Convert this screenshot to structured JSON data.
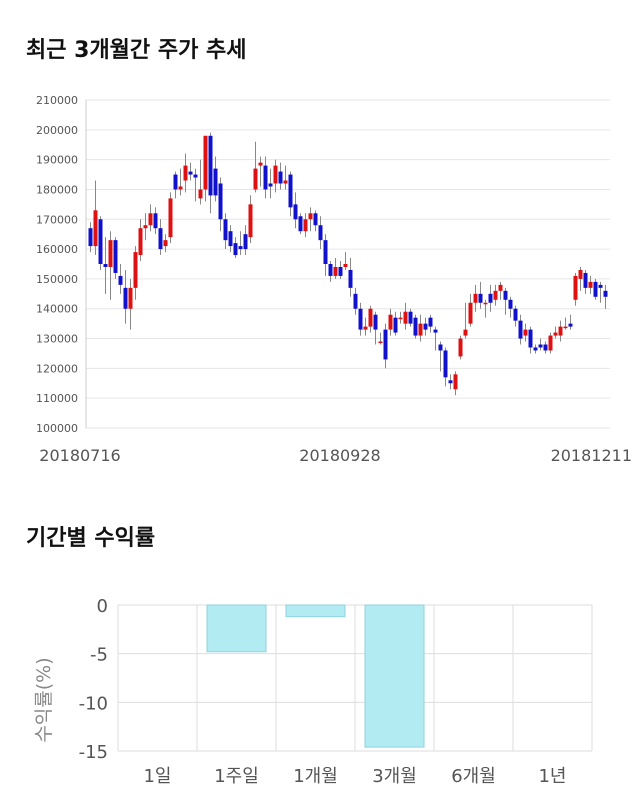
{
  "section1": {
    "title": "최근 3개월간 주가 추세"
  },
  "section2": {
    "title": "기간별 수익률"
  },
  "chart_data": [
    {
      "type": "candlestick",
      "title": "최근 3개월간 주가 추세",
      "ylim": [
        100000,
        210000
      ],
      "y_ticks": [
        100000,
        110000,
        120000,
        130000,
        140000,
        150000,
        160000,
        170000,
        180000,
        190000,
        200000,
        210000
      ],
      "x_tick_labels": [
        "20180716",
        "20180928",
        "20181211"
      ],
      "grid": true,
      "colors": {
        "up": "#dd1111",
        "down": "#1111cc",
        "wick": "#888888",
        "grid": "#e6e6e6"
      },
      "candles": [
        [
          167000,
          161000,
          169000,
          159000
        ],
        [
          161000,
          173000,
          183000,
          158000
        ],
        [
          170000,
          155000,
          171000,
          153000
        ],
        [
          155000,
          154000,
          164000,
          145000
        ],
        [
          154000,
          163000,
          166000,
          143000
        ],
        [
          163000,
          152000,
          164000,
          150000
        ],
        [
          151000,
          148000,
          155000,
          145000
        ],
        [
          147000,
          140000,
          153000,
          135000
        ],
        [
          140000,
          147000,
          150000,
          133000
        ],
        [
          147000,
          159000,
          161000,
          143000
        ],
        [
          158000,
          167000,
          170000,
          156000
        ],
        [
          167000,
          168000,
          172000,
          163000
        ],
        [
          168000,
          172000,
          175000,
          166000
        ],
        [
          172000,
          167000,
          174000,
          165000
        ],
        [
          167000,
          160000,
          170000,
          158000
        ],
        [
          161000,
          163000,
          165000,
          159000
        ],
        [
          164000,
          177000,
          179000,
          162000
        ],
        [
          185000,
          180000,
          186000,
          177000
        ],
        [
          180000,
          181000,
          187000,
          178000
        ],
        [
          183000,
          188000,
          192000,
          179000
        ],
        [
          186000,
          185000,
          189000,
          183000
        ],
        [
          185000,
          184000,
          187000,
          176000
        ],
        [
          177000,
          180000,
          190000,
          175000
        ],
        [
          180000,
          198000,
          198000,
          176000
        ],
        [
          198000,
          178000,
          199000,
          172000
        ],
        [
          187000,
          178000,
          191000,
          176000
        ],
        [
          182000,
          170000,
          184000,
          166000
        ],
        [
          170000,
          163000,
          172000,
          160000
        ],
        [
          166000,
          161000,
          168000,
          159000
        ],
        [
          162000,
          158000,
          164000,
          157000
        ],
        [
          161000,
          160000,
          166000,
          158000
        ],
        [
          165000,
          160000,
          168000,
          158000
        ],
        [
          164000,
          175000,
          178000,
          162000
        ],
        [
          180000,
          187000,
          196000,
          179000
        ],
        [
          188000,
          189000,
          191000,
          181000
        ],
        [
          188000,
          180000,
          191000,
          177000
        ],
        [
          182000,
          181000,
          187000,
          177000
        ],
        [
          182000,
          188000,
          190000,
          179000
        ],
        [
          186000,
          182000,
          189000,
          180000
        ],
        [
          182000,
          183000,
          188000,
          180000
        ],
        [
          185000,
          174000,
          186000,
          171000
        ],
        [
          175000,
          170000,
          179000,
          167000
        ],
        [
          171000,
          166000,
          172000,
          165000
        ],
        [
          166000,
          170000,
          172000,
          164000
        ],
        [
          170000,
          172000,
          174000,
          166000
        ],
        [
          172000,
          168000,
          173000,
          166000
        ],
        [
          168000,
          163000,
          171000,
          160000
        ],
        [
          163000,
          155000,
          165000,
          151000
        ],
        [
          155000,
          151000,
          156000,
          149000
        ],
        [
          151000,
          154000,
          157000,
          150000
        ],
        [
          154000,
          151000,
          156000,
          150000
        ],
        [
          154000,
          155000,
          159000,
          153000
        ],
        [
          153000,
          147000,
          157000,
          144000
        ],
        [
          145000,
          140000,
          147000,
          138000
        ],
        [
          140000,
          133000,
          142000,
          131000
        ],
        [
          133000,
          134000,
          137000,
          131000
        ],
        [
          134000,
          140000,
          141000,
          132000
        ],
        [
          138000,
          133000,
          139000,
          128000
        ],
        [
          129000,
          129000,
          132000,
          128000
        ],
        [
          133000,
          123000,
          135000,
          120000
        ],
        [
          133000,
          138000,
          140000,
          131000
        ],
        [
          137000,
          132000,
          139000,
          131000
        ],
        [
          137000,
          137000,
          139000,
          135000
        ],
        [
          135000,
          139000,
          142000,
          133000
        ],
        [
          139000,
          135000,
          140000,
          134000
        ],
        [
          137000,
          131000,
          138000,
          130000
        ],
        [
          131000,
          135000,
          138000,
          129000
        ],
        [
          135000,
          133000,
          137000,
          131000
        ],
        [
          137000,
          134000,
          138000,
          132000
        ],
        [
          133000,
          132000,
          134000,
          126000
        ],
        [
          128000,
          126000,
          129000,
          119000
        ],
        [
          126000,
          117000,
          127000,
          114000
        ],
        [
          116000,
          115000,
          118000,
          113000
        ],
        [
          113000,
          118000,
          119000,
          111000
        ],
        [
          124000,
          130000,
          131000,
          123000
        ],
        [
          131000,
          133000,
          142000,
          130000
        ],
        [
          135000,
          142000,
          145000,
          134000
        ],
        [
          142000,
          145000,
          148000,
          139000
        ],
        [
          145000,
          142000,
          149000,
          140000
        ],
        [
          142000,
          142000,
          143000,
          137000
        ],
        [
          145000,
          142000,
          148000,
          139000
        ],
        [
          143000,
          146000,
          148000,
          141000
        ],
        [
          146000,
          148000,
          149000,
          143000
        ],
        [
          146000,
          143000,
          147000,
          138000
        ],
        [
          143000,
          140000,
          144000,
          137000
        ],
        [
          140000,
          136000,
          141000,
          134000
        ],
        [
          136000,
          130000,
          138000,
          128000
        ],
        [
          131000,
          133000,
          135000,
          129000
        ],
        [
          133000,
          127000,
          134000,
          125000
        ],
        [
          127000,
          126000,
          128000,
          125000
        ],
        [
          128000,
          127000,
          130000,
          126000
        ],
        [
          128000,
          126000,
          129000,
          125000
        ],
        [
          126000,
          131000,
          132000,
          125000
        ],
        [
          131000,
          132000,
          134000,
          130000
        ],
        [
          131000,
          134000,
          136000,
          129000
        ],
        [
          134000,
          134000,
          137000,
          133000
        ],
        [
          135000,
          134000,
          138000,
          133000
        ],
        [
          143000,
          151000,
          152000,
          141000
        ],
        [
          150000,
          153000,
          154000,
          146000
        ],
        [
          152000,
          147000,
          153000,
          145000
        ],
        [
          147000,
          149000,
          151000,
          145000
        ],
        [
          149000,
          144000,
          150000,
          143000
        ],
        [
          148000,
          147000,
          149000,
          142000
        ],
        [
          146000,
          144000,
          148000,
          140000
        ]
      ]
    },
    {
      "type": "bar",
      "title": "기간별 수익률",
      "ylabel": "수익률(%)",
      "xlabel": "",
      "ylim": [
        -15,
        0
      ],
      "y_ticks": [
        0,
        -5,
        -10,
        -15
      ],
      "grid": true,
      "categories": [
        "1일",
        "1주일",
        "1개월",
        "3개월",
        "6개월",
        "1년"
      ],
      "values": [
        0,
        -4.8,
        -1.2,
        -14.6,
        null,
        null
      ],
      "colors": {
        "bar": "#b3ebf2",
        "bar_edge": "#8fd3de",
        "grid": "#dddddd"
      }
    }
  ]
}
